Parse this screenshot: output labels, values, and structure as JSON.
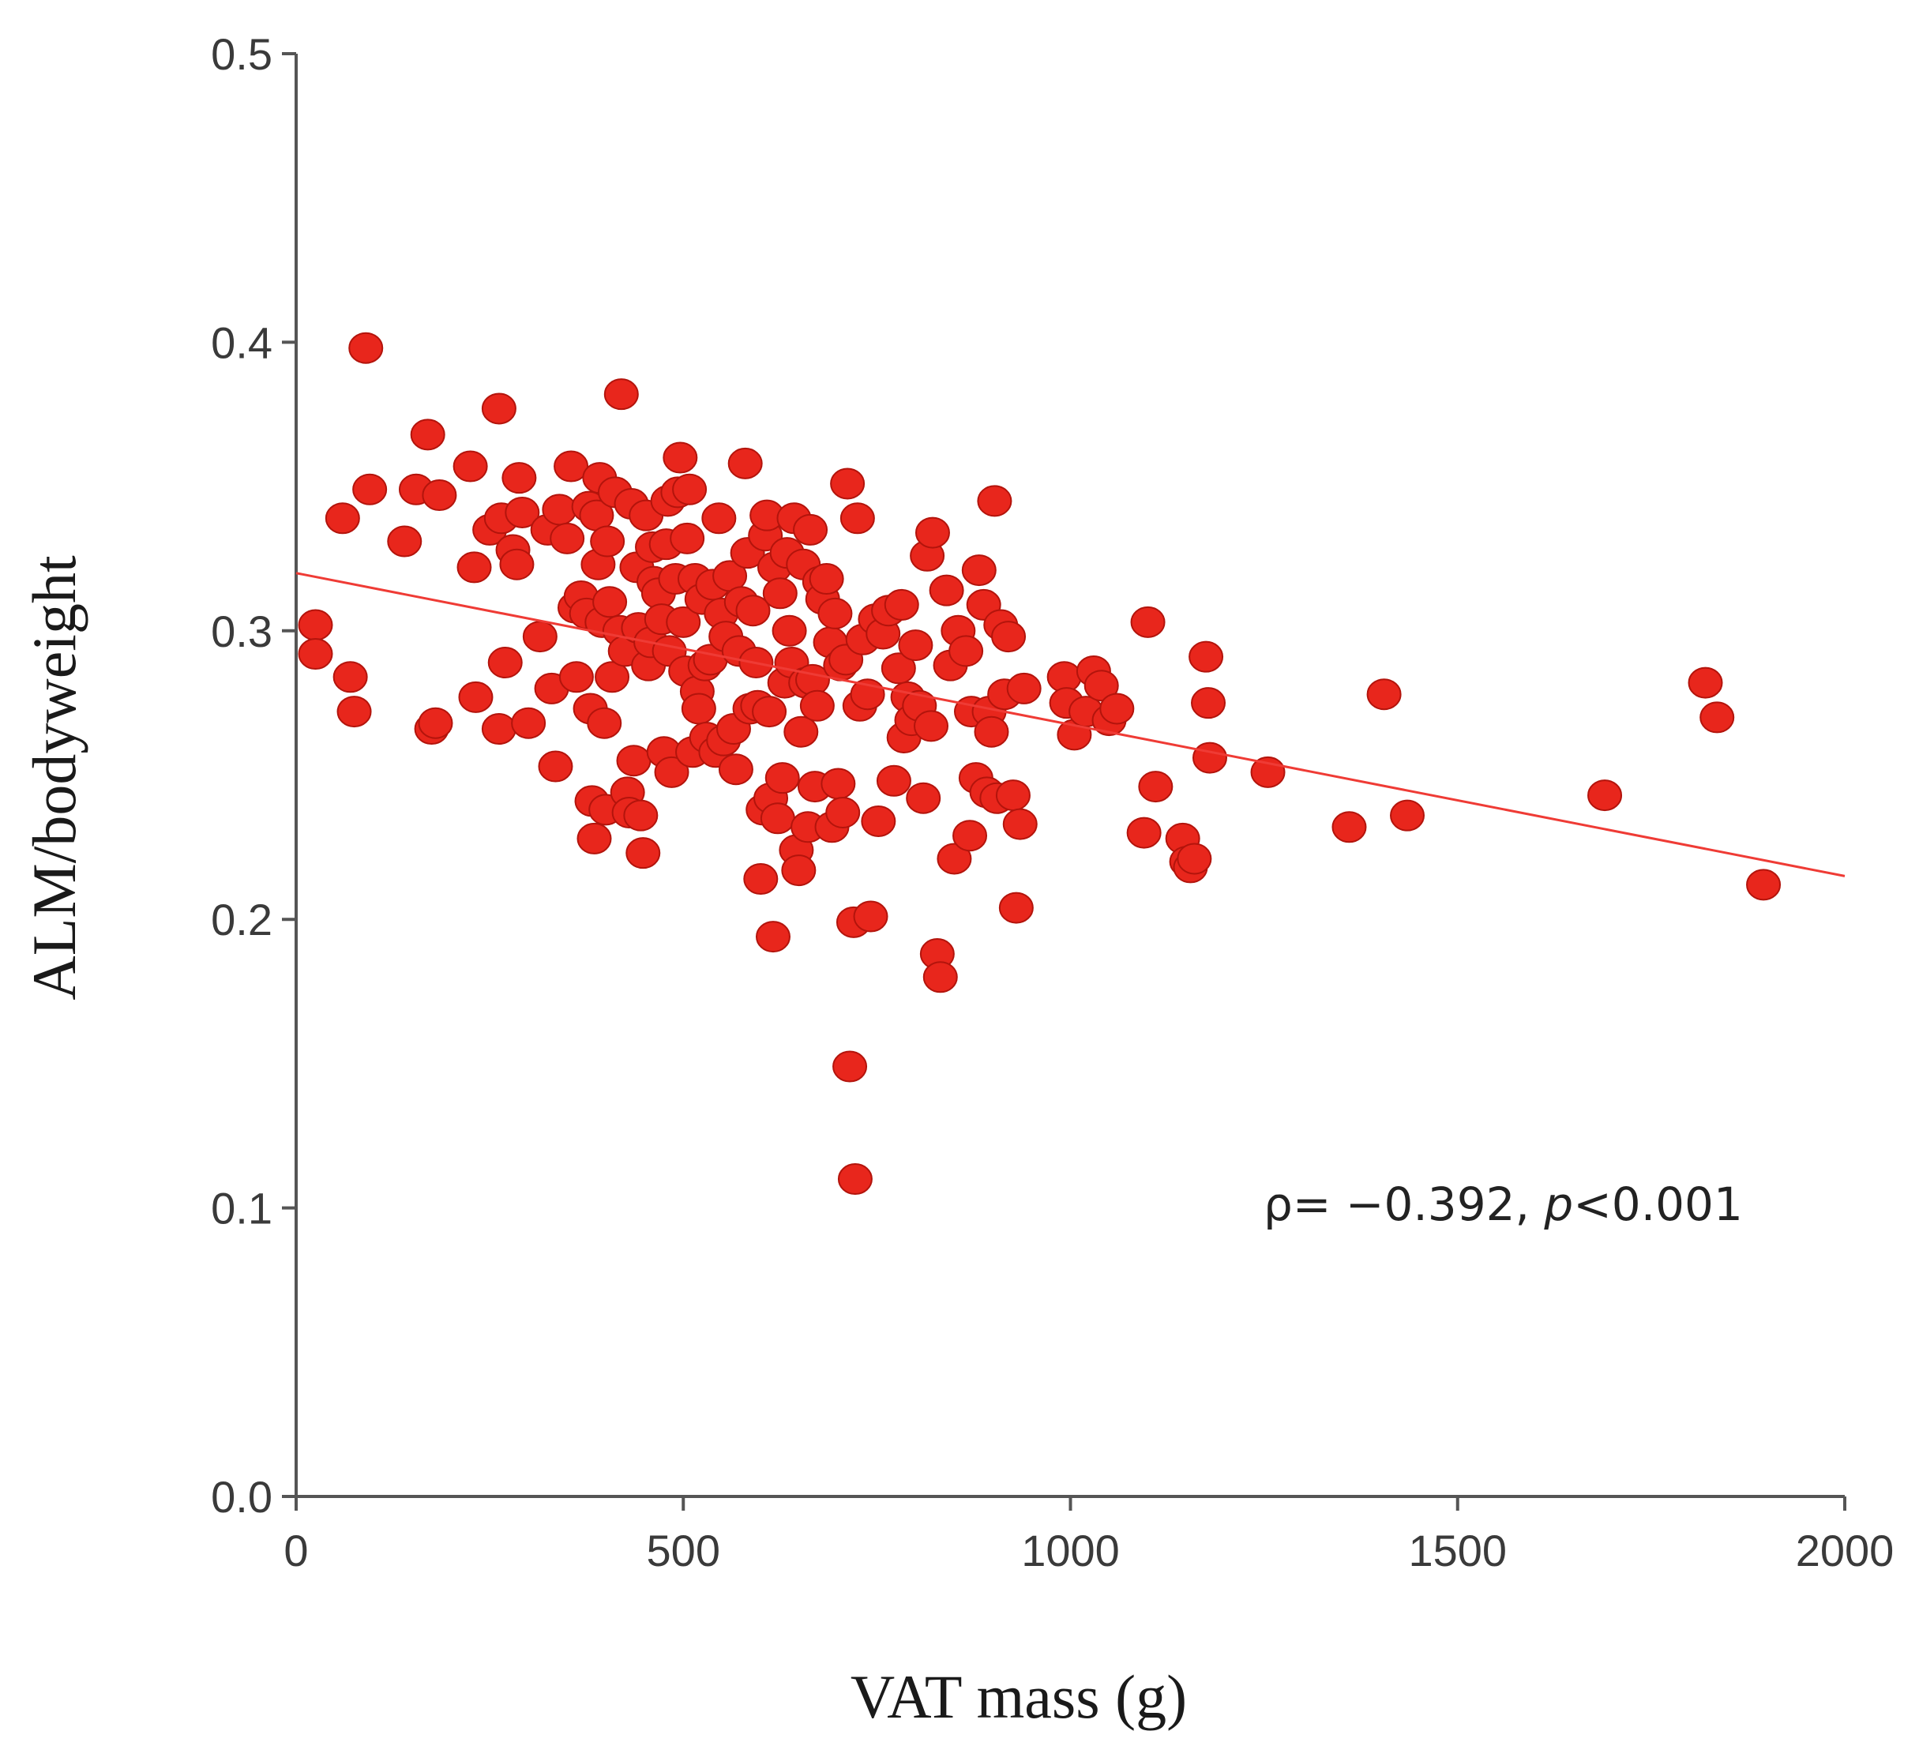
{
  "chart_data": {
    "type": "scatter",
    "title": "",
    "xlabel": "VAT mass (g)",
    "ylabel": "ALM/bodyweight",
    "xlim": [
      0,
      2000
    ],
    "ylim": [
      0.0,
      0.5
    ],
    "x_ticks": [
      "0",
      "500",
      "1000",
      "1500",
      "2000"
    ],
    "y_ticks": [
      "0.0",
      "0.1",
      "0.2",
      "0.3",
      "0.4",
      "0.5"
    ],
    "grid": false,
    "annotation": {
      "rho_label": "ρ= −0.392, ",
      "p_symbol": "p",
      "p_value": "<0.001"
    },
    "trendline": {
      "x": [
        0,
        2000
      ],
      "y": [
        0.32,
        0.215
      ]
    },
    "point_color": "#e8261c",
    "line_color": "#ef3b35",
    "points": [
      [
        25,
        0.302
      ],
      [
        25,
        0.292
      ],
      [
        60,
        0.339
      ],
      [
        70,
        0.284
      ],
      [
        75,
        0.272
      ],
      [
        90,
        0.398
      ],
      [
        95,
        0.349
      ],
      [
        140,
        0.331
      ],
      [
        155,
        0.349
      ],
      [
        170,
        0.368
      ],
      [
        175,
        0.266
      ],
      [
        180,
        0.268
      ],
      [
        185,
        0.347
      ],
      [
        225,
        0.357
      ],
      [
        230,
        0.322
      ],
      [
        232,
        0.277
      ],
      [
        250,
        0.335
      ],
      [
        262,
        0.377
      ],
      [
        262,
        0.266
      ],
      [
        265,
        0.339
      ],
      [
        270,
        0.289
      ],
      [
        280,
        0.328
      ],
      [
        285,
        0.323
      ],
      [
        288,
        0.353
      ],
      [
        292,
        0.341
      ],
      [
        300,
        0.268
      ],
      [
        315,
        0.298
      ],
      [
        325,
        0.335
      ],
      [
        330,
        0.28
      ],
      [
        335,
        0.253
      ],
      [
        340,
        0.342
      ],
      [
        350,
        0.332
      ],
      [
        355,
        0.357
      ],
      [
        360,
        0.308
      ],
      [
        362,
        0.284
      ],
      [
        368,
        0.312
      ],
      [
        375,
        0.306
      ],
      [
        378,
        0.343
      ],
      [
        380,
        0.273
      ],
      [
        382,
        0.241
      ],
      [
        385,
        0.228
      ],
      [
        388,
        0.34
      ],
      [
        390,
        0.323
      ],
      [
        392,
        0.353
      ],
      [
        395,
        0.303
      ],
      [
        398,
        0.268
      ],
      [
        400,
        0.238
      ],
      [
        402,
        0.331
      ],
      [
        405,
        0.31
      ],
      [
        408,
        0.284
      ],
      [
        412,
        0.348
      ],
      [
        418,
        0.3
      ],
      [
        420,
        0.382
      ],
      [
        425,
        0.293
      ],
      [
        428,
        0.244
      ],
      [
        430,
        0.237
      ],
      [
        433,
        0.344
      ],
      [
        436,
        0.255
      ],
      [
        440,
        0.322
      ],
      [
        442,
        0.301
      ],
      [
        445,
        0.236
      ],
      [
        448,
        0.223
      ],
      [
        452,
        0.34
      ],
      [
        455,
        0.288
      ],
      [
        458,
        0.296
      ],
      [
        460,
        0.329
      ],
      [
        462,
        0.317
      ],
      [
        468,
        0.313
      ],
      [
        472,
        0.304
      ],
      [
        475,
        0.258
      ],
      [
        478,
        0.33
      ],
      [
        480,
        0.345
      ],
      [
        482,
        0.293
      ],
      [
        485,
        0.251
      ],
      [
        490,
        0.318
      ],
      [
        493,
        0.348
      ],
      [
        496,
        0.36
      ],
      [
        500,
        0.303
      ],
      [
        503,
        0.286
      ],
      [
        505,
        0.332
      ],
      [
        508,
        0.349
      ],
      [
        512,
        0.258
      ],
      [
        515,
        0.318
      ],
      [
        518,
        0.279
      ],
      [
        520,
        0.273
      ],
      [
        524,
        0.311
      ],
      [
        528,
        0.288
      ],
      [
        530,
        0.263
      ],
      [
        535,
        0.29
      ],
      [
        538,
        0.316
      ],
      [
        542,
        0.258
      ],
      [
        546,
        0.339
      ],
      [
        549,
        0.306
      ],
      [
        552,
        0.262
      ],
      [
        555,
        0.298
      ],
      [
        560,
        0.319
      ],
      [
        565,
        0.266
      ],
      [
        568,
        0.252
      ],
      [
        572,
        0.293
      ],
      [
        575,
        0.31
      ],
      [
        580,
        0.358
      ],
      [
        583,
        0.327
      ],
      [
        586,
        0.273
      ],
      [
        590,
        0.307
      ],
      [
        594,
        0.289
      ],
      [
        596,
        0.274
      ],
      [
        600,
        0.214
      ],
      [
        603,
        0.238
      ],
      [
        606,
        0.333
      ],
      [
        608,
        0.34
      ],
      [
        611,
        0.272
      ],
      [
        613,
        0.242
      ],
      [
        616,
        0.194
      ],
      [
        618,
        0.322
      ],
      [
        622,
        0.235
      ],
      [
        625,
        0.313
      ],
      [
        628,
        0.249
      ],
      [
        631,
        0.282
      ],
      [
        634,
        0.327
      ],
      [
        637,
        0.3
      ],
      [
        640,
        0.289
      ],
      [
        643,
        0.339
      ],
      [
        646,
        0.224
      ],
      [
        649,
        0.217
      ],
      [
        652,
        0.265
      ],
      [
        655,
        0.323
      ],
      [
        658,
        0.282
      ],
      [
        661,
        0.232
      ],
      [
        664,
        0.335
      ],
      [
        667,
        0.283
      ],
      [
        670,
        0.246
      ],
      [
        673,
        0.274
      ],
      [
        676,
        0.317
      ],
      [
        680,
        0.311
      ],
      [
        685,
        0.318
      ],
      [
        690,
        0.296
      ],
      [
        692,
        0.232
      ],
      [
        696,
        0.306
      ],
      [
        700,
        0.247
      ],
      [
        703,
        0.288
      ],
      [
        706,
        0.237
      ],
      [
        710,
        0.29
      ],
      [
        712,
        0.351
      ],
      [
        715,
        0.149
      ],
      [
        720,
        0.199
      ],
      [
        722,
        0.11
      ],
      [
        725,
        0.339
      ],
      [
        728,
        0.274
      ],
      [
        732,
        0.297
      ],
      [
        738,
        0.278
      ],
      [
        742,
        0.201
      ],
      [
        748,
        0.304
      ],
      [
        752,
        0.234
      ],
      [
        758,
        0.299
      ],
      [
        765,
        0.307
      ],
      [
        772,
        0.248
      ],
      [
        778,
        0.287
      ],
      [
        782,
        0.309
      ],
      [
        785,
        0.263
      ],
      [
        790,
        0.277
      ],
      [
        795,
        0.269
      ],
      [
        800,
        0.295
      ],
      [
        805,
        0.274
      ],
      [
        810,
        0.242
      ],
      [
        815,
        0.326
      ],
      [
        820,
        0.267
      ],
      [
        822,
        0.334
      ],
      [
        828,
        0.188
      ],
      [
        832,
        0.18
      ],
      [
        840,
        0.314
      ],
      [
        845,
        0.288
      ],
      [
        850,
        0.221
      ],
      [
        855,
        0.3
      ],
      [
        865,
        0.293
      ],
      [
        870,
        0.229
      ],
      [
        872,
        0.272
      ],
      [
        878,
        0.249
      ],
      [
        882,
        0.321
      ],
      [
        888,
        0.309
      ],
      [
        892,
        0.244
      ],
      [
        895,
        0.272
      ],
      [
        898,
        0.265
      ],
      [
        902,
        0.345
      ],
      [
        905,
        0.242
      ],
      [
        910,
        0.302
      ],
      [
        915,
        0.278
      ],
      [
        920,
        0.298
      ],
      [
        926,
        0.243
      ],
      [
        930,
        0.204
      ],
      [
        935,
        0.233
      ],
      [
        940,
        0.28
      ],
      [
        992,
        0.284
      ],
      [
        995,
        0.275
      ],
      [
        1005,
        0.264
      ],
      [
        1020,
        0.272
      ],
      [
        1030,
        0.286
      ],
      [
        1040,
        0.281
      ],
      [
        1050,
        0.269
      ],
      [
        1060,
        0.273
      ],
      [
        1095,
        0.23
      ],
      [
        1100,
        0.303
      ],
      [
        1110,
        0.246
      ],
      [
        1145,
        0.228
      ],
      [
        1150,
        0.22
      ],
      [
        1155,
        0.218
      ],
      [
        1160,
        0.221
      ],
      [
        1175,
        0.291
      ],
      [
        1178,
        0.275
      ],
      [
        1180,
        0.256
      ],
      [
        1255,
        0.251
      ],
      [
        1360,
        0.232
      ],
      [
        1405,
        0.278
      ],
      [
        1435,
        0.236
      ],
      [
        1690,
        0.243
      ],
      [
        1820,
        0.282
      ],
      [
        1835,
        0.27
      ],
      [
        1895,
        0.212
      ]
    ]
  }
}
